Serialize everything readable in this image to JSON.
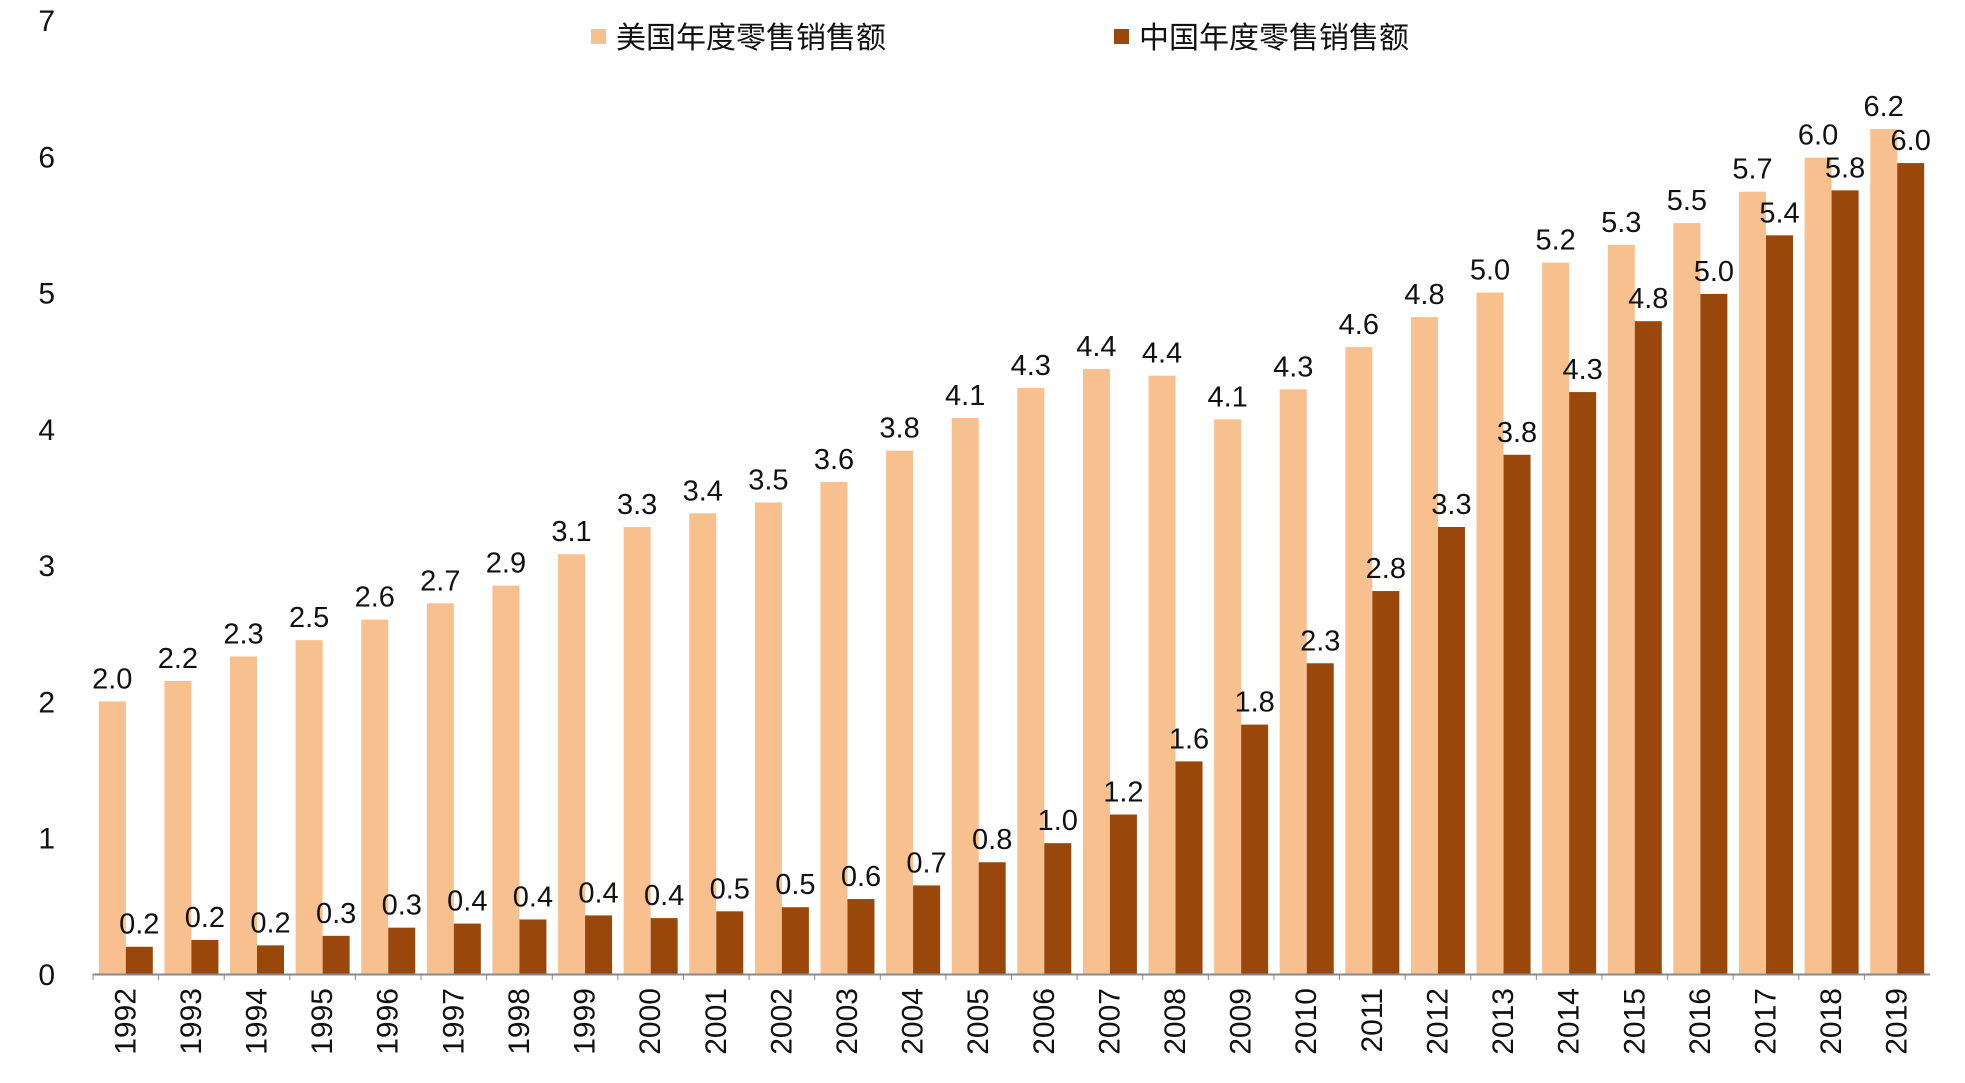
{
  "chart_data": {
    "type": "bar",
    "title": "",
    "xlabel": "",
    "ylabel": "",
    "ylim": [
      0,
      7
    ],
    "yticks": [
      "0",
      "1",
      "2",
      "3",
      "4",
      "5",
      "6",
      "7"
    ],
    "grid": false,
    "legend_position": "top-center",
    "categories": [
      "1992",
      "1993",
      "1994",
      "1995",
      "1996",
      "1997",
      "1998",
      "1999",
      "2000",
      "2001",
      "2002",
      "2003",
      "2004",
      "2005",
      "2006",
      "2007",
      "2008",
      "2009",
      "2010",
      "2011",
      "2012",
      "2013",
      "2014",
      "2015",
      "2016",
      "2017",
      "2018",
      "2019"
    ],
    "series": [
      {
        "name": "美国年度零售销售额",
        "color": "#F9C08F",
        "values": [
          2.0,
          2.15,
          2.33,
          2.45,
          2.6,
          2.72,
          2.85,
          3.08,
          3.28,
          3.38,
          3.46,
          3.61,
          3.84,
          4.08,
          4.3,
          4.44,
          4.39,
          4.07,
          4.29,
          4.6,
          4.82,
          5.0,
          5.22,
          5.35,
          5.51,
          5.74,
          5.99,
          6.2
        ],
        "labels": [
          "2.0",
          "2.2",
          "2.3",
          "2.5",
          "2.6",
          "2.7",
          "2.9",
          "3.1",
          "3.3",
          "3.4",
          "3.5",
          "3.6",
          "3.8",
          "4.1",
          "4.3",
          "4.4",
          "4.4",
          "4.1",
          "4.3",
          "4.6",
          "4.8",
          "5.0",
          "5.2",
          "5.3",
          "5.5",
          "5.7",
          "6.0",
          "6.2"
        ]
      },
      {
        "name": "中国年度零售销售额",
        "color": "#99470B",
        "values": [
          0.2,
          0.25,
          0.21,
          0.28,
          0.34,
          0.37,
          0.4,
          0.43,
          0.41,
          0.46,
          0.49,
          0.55,
          0.65,
          0.82,
          0.96,
          1.17,
          1.56,
          1.83,
          2.28,
          2.81,
          3.28,
          3.81,
          4.27,
          4.79,
          4.99,
          5.42,
          5.75,
          5.95
        ],
        "labels": [
          "0.2",
          "0.2",
          "0.2",
          "0.3",
          "0.3",
          "0.4",
          "0.4",
          "0.4",
          "0.4",
          "0.5",
          "0.5",
          "0.6",
          "0.7",
          "0.8",
          "1.0",
          "1.2",
          "1.6",
          "1.8",
          "2.3",
          "2.8",
          "3.3",
          "3.8",
          "4.3",
          "4.8",
          "5.0",
          "5.4",
          "5.8",
          "6.0"
        ]
      }
    ]
  }
}
